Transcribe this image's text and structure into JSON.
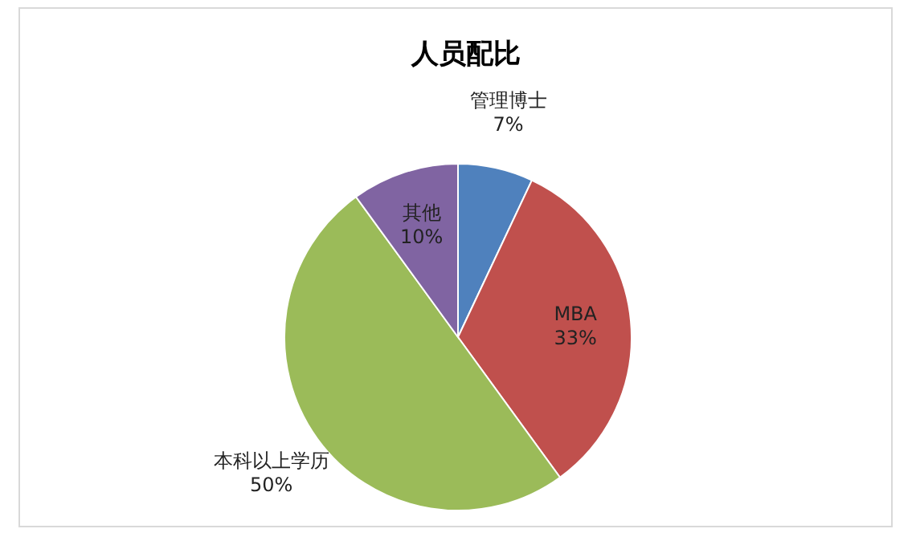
{
  "chart_data": {
    "type": "pie",
    "title": "人员配比",
    "categories": [
      "管理博士",
      "MBA",
      "本科以上学历",
      "其他"
    ],
    "values": [
      7,
      33,
      50,
      10
    ],
    "value_labels": [
      "7%",
      "33%",
      "50%",
      "10%"
    ],
    "colors": [
      "#4f81bd",
      "#c0504d",
      "#9bbb59",
      "#8064a2"
    ],
    "legend": false
  }
}
